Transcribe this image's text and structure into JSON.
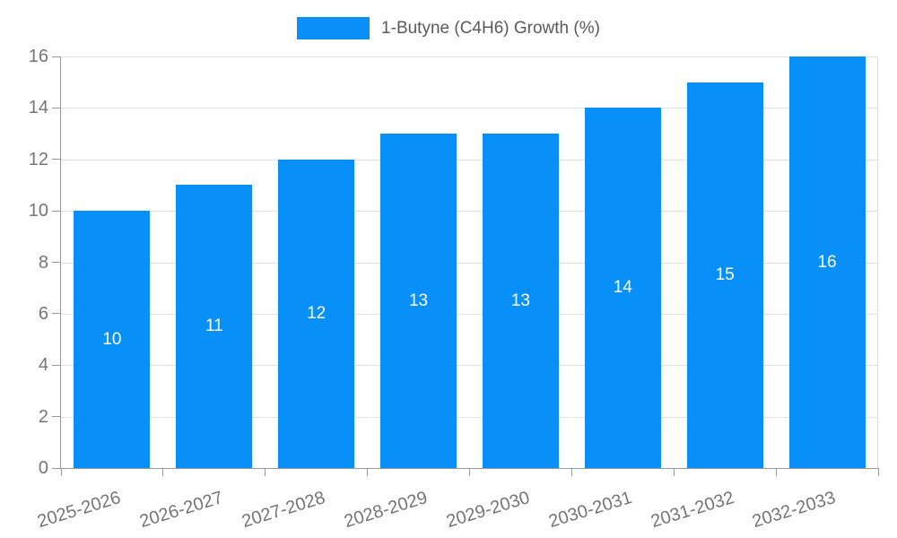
{
  "chart_data": {
    "type": "bar",
    "title": "1-Butyne (C4H6) Growth (%)",
    "legend": {
      "label": "1-Butyne (C4H6) Growth (%)",
      "position": "top-center"
    },
    "categories": [
      "2025-2026",
      "2026-2027",
      "2027-2028",
      "2028-2029",
      "2029-2030",
      "2030-2031",
      "2031-2032",
      "2032-2033"
    ],
    "series": [
      {
        "name": "1-Butyne (C4H6) Growth (%)",
        "values": [
          10,
          11,
          12,
          13,
          13,
          14,
          15,
          16
        ]
      }
    ],
    "bar_labels": [
      "10",
      "11",
      "12",
      "13",
      "13",
      "14",
      "15",
      "16"
    ],
    "xlabel": "",
    "ylabel": "",
    "ylim": [
      0,
      16
    ],
    "ytick_step": 2,
    "ytick_labels": [
      "0",
      "2",
      "4",
      "6",
      "8",
      "10",
      "12",
      "14",
      "16"
    ],
    "grid": true,
    "colors": {
      "bar": "#0990f8",
      "gridline": "#e0e0e0",
      "plot_border": "#e0e0e0",
      "axis_line": "#999999",
      "tick_mark": "#999999",
      "tick_label": "#757575",
      "legend_text": "#595959",
      "bar_label": "#ffffff",
      "background": "#ffffff"
    }
  }
}
